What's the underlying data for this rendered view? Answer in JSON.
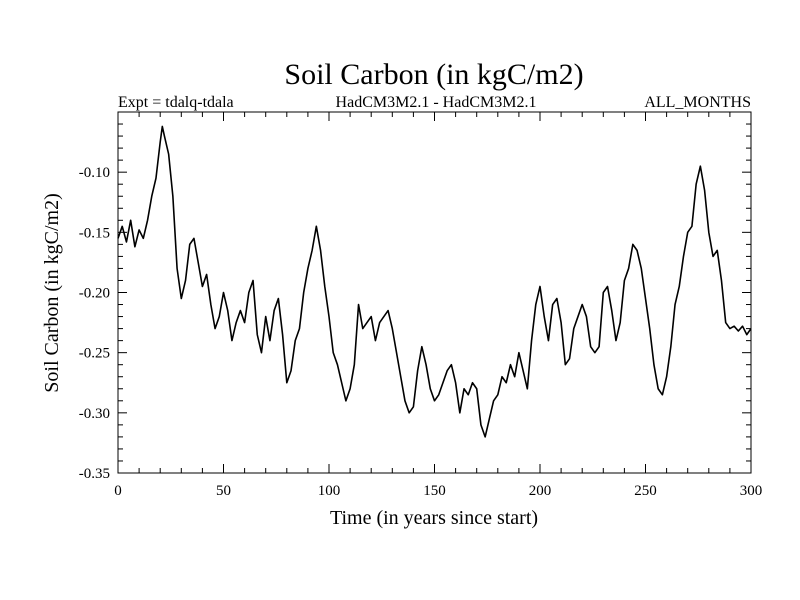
{
  "chart_data": {
    "type": "line",
    "title": "Soil Carbon (in kgC/m2)",
    "subtitle_left": "Expt = tdalq-tdala",
    "subtitle_center": "HadCM3M2.1 - HadCM3M2.1",
    "subtitle_right": "ALL_MONTHS",
    "xlabel": "Time (in years since start)",
    "ylabel": "Soil Carbon (in kgC/m2)",
    "xlim": [
      0,
      300
    ],
    "ylim": [
      -0.35,
      -0.05
    ],
    "xticks": [
      0,
      50,
      100,
      150,
      200,
      250,
      300
    ],
    "xtick_labels": [
      "0",
      "50",
      "100",
      "150",
      "200",
      "250",
      "300"
    ],
    "yticks": [
      -0.35,
      -0.3,
      -0.25,
      -0.2,
      -0.15,
      -0.1
    ],
    "ytick_labels": [
      "-0.35",
      "-0.30",
      "-0.25",
      "-0.20",
      "-0.15",
      "-0.10"
    ],
    "grid": false,
    "color": "#000000",
    "series": [
      {
        "name": "Soil Carbon",
        "x": [
          0,
          2,
          4,
          6,
          8,
          10,
          12,
          14,
          16,
          18,
          20,
          21,
          22,
          24,
          26,
          28,
          30,
          32,
          34,
          36,
          38,
          40,
          42,
          44,
          46,
          48,
          50,
          52,
          54,
          56,
          58,
          60,
          62,
          64,
          66,
          68,
          70,
          72,
          74,
          76,
          78,
          80,
          82,
          84,
          86,
          88,
          90,
          92,
          94,
          96,
          98,
          100,
          102,
          104,
          106,
          108,
          110,
          112,
          114,
          116,
          118,
          120,
          122,
          124,
          126,
          128,
          130,
          132,
          134,
          136,
          138,
          140,
          142,
          144,
          146,
          148,
          150,
          152,
          154,
          156,
          158,
          160,
          162,
          164,
          166,
          168,
          170,
          172,
          174,
          176,
          178,
          180,
          182,
          184,
          186,
          188,
          190,
          192,
          194,
          196,
          198,
          200,
          202,
          204,
          206,
          208,
          210,
          212,
          214,
          216,
          218,
          220,
          222,
          224,
          226,
          228,
          230,
          232,
          234,
          236,
          238,
          240,
          242,
          244,
          246,
          248,
          250,
          252,
          254,
          256,
          258,
          260,
          262,
          264,
          266,
          268,
          270,
          272,
          274,
          276,
          278,
          280,
          282,
          284,
          286,
          288,
          290,
          292,
          294,
          296,
          298,
          300
        ],
        "y": [
          -0.155,
          -0.145,
          -0.158,
          -0.14,
          -0.162,
          -0.148,
          -0.155,
          -0.14,
          -0.12,
          -0.105,
          -0.075,
          -0.062,
          -0.07,
          -0.085,
          -0.12,
          -0.18,
          -0.205,
          -0.19,
          -0.16,
          -0.155,
          -0.175,
          -0.195,
          -0.185,
          -0.21,
          -0.23,
          -0.22,
          -0.2,
          -0.215,
          -0.24,
          -0.225,
          -0.215,
          -0.225,
          -0.2,
          -0.19,
          -0.235,
          -0.25,
          -0.22,
          -0.24,
          -0.215,
          -0.205,
          -0.235,
          -0.275,
          -0.265,
          -0.24,
          -0.23,
          -0.2,
          -0.18,
          -0.165,
          -0.145,
          -0.165,
          -0.195,
          -0.22,
          -0.25,
          -0.26,
          -0.275,
          -0.29,
          -0.28,
          -0.26,
          -0.21,
          -0.23,
          -0.225,
          -0.22,
          -0.24,
          -0.225,
          -0.22,
          -0.215,
          -0.23,
          -0.25,
          -0.27,
          -0.29,
          -0.3,
          -0.295,
          -0.265,
          -0.245,
          -0.26,
          -0.28,
          -0.29,
          -0.285,
          -0.275,
          -0.265,
          -0.26,
          -0.275,
          -0.3,
          -0.28,
          -0.285,
          -0.275,
          -0.28,
          -0.31,
          -0.32,
          -0.305,
          -0.29,
          -0.285,
          -0.27,
          -0.275,
          -0.26,
          -0.27,
          -0.25,
          -0.265,
          -0.28,
          -0.24,
          -0.21,
          -0.195,
          -0.22,
          -0.24,
          -0.21,
          -0.205,
          -0.225,
          -0.26,
          -0.255,
          -0.23,
          -0.22,
          -0.21,
          -0.22,
          -0.245,
          -0.25,
          -0.245,
          -0.2,
          -0.195,
          -0.215,
          -0.24,
          -0.225,
          -0.19,
          -0.18,
          -0.16,
          -0.165,
          -0.18,
          -0.205,
          -0.23,
          -0.26,
          -0.28,
          -0.285,
          -0.27,
          -0.245,
          -0.21,
          -0.195,
          -0.17,
          -0.15,
          -0.145,
          -0.11,
          -0.095,
          -0.115,
          -0.15,
          -0.17,
          -0.165,
          -0.19,
          -0.225,
          -0.23,
          -0.228,
          -0.232,
          -0.228,
          -0.235,
          -0.23
        ]
      }
    ]
  }
}
